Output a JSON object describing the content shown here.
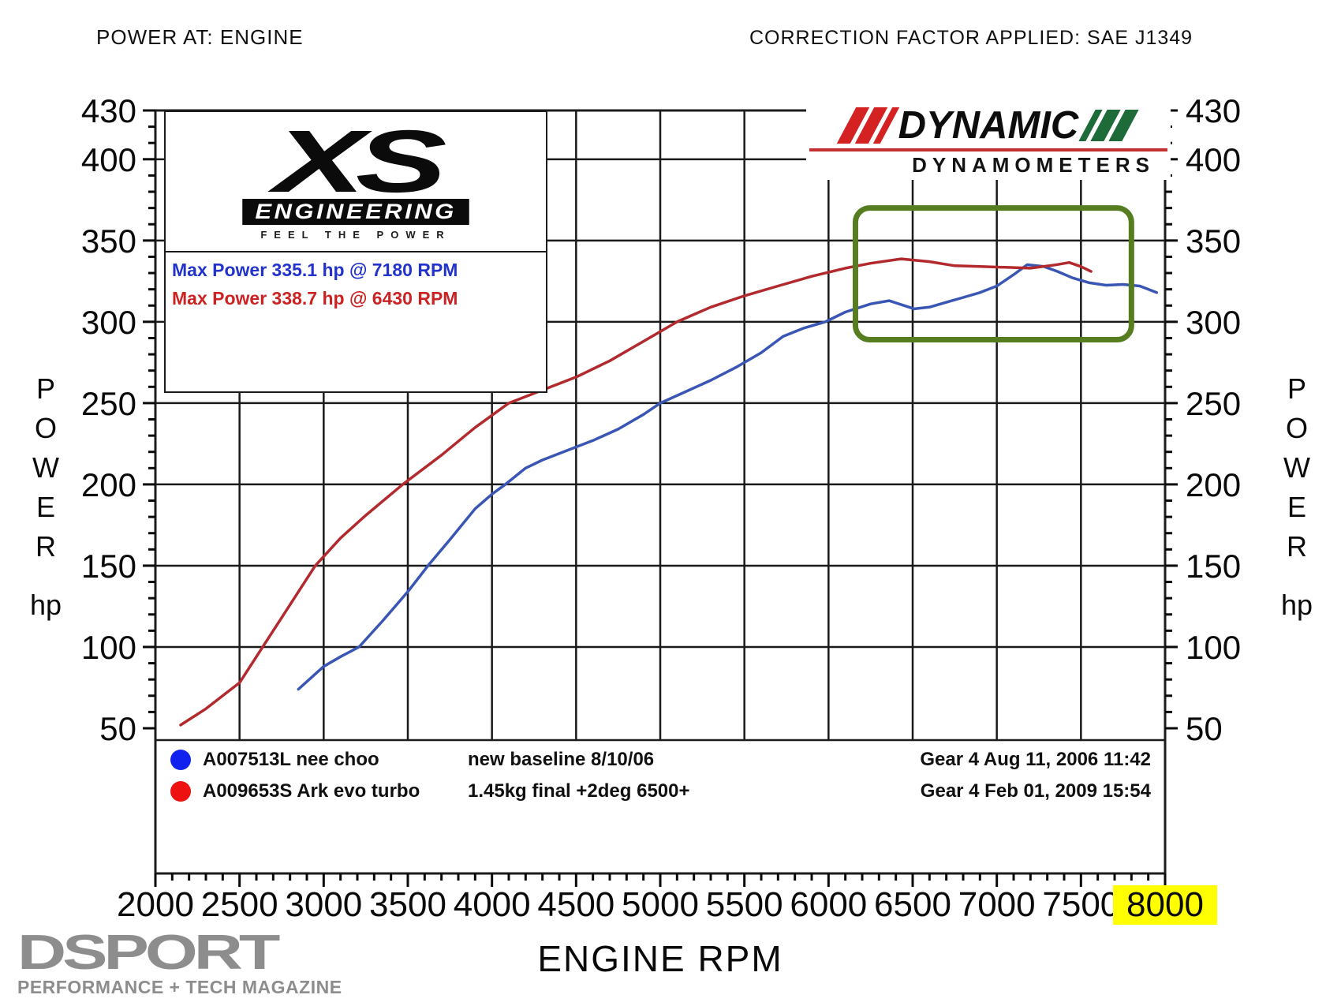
{
  "header": {
    "left": "POWER AT: ENGINE",
    "right": "CORRECTION FACTOR APPLIED: SAE J1349"
  },
  "info_box": {
    "max_power_blue": "Max Power 335.1 hp @ 7180 RPM",
    "max_power_red": "Max Power 338.7 hp @ 6430 RPM"
  },
  "logos": {
    "xs": {
      "title": "XS",
      "subtitle": "ENGINEERING",
      "tagline": "FEEL THE POWER"
    },
    "dynamic": {
      "title": "DYNAMIC",
      "subtitle": "DYNAMOMETERS"
    },
    "dsport": {
      "title": "DSPORT",
      "subtitle": "PERFORMANCE + TECH MAGAZINE"
    }
  },
  "legend": {
    "rows": [
      {
        "color": "#1122ee",
        "name": "A007513L nee choo",
        "description": "new baseline 8/10/06",
        "gear_info": "Gear 4 Aug 11, 2006 11:42"
      },
      {
        "color": "#ee1111",
        "name": "A009653S Ark evo turbo",
        "description": "1.45kg final +2deg 6500+",
        "gear_info": "Gear 4 Feb 01, 2009 15:54"
      }
    ]
  },
  "chart_data": {
    "type": "line",
    "title": "POWER AT: ENGINE",
    "correction_factor": "SAE J1349",
    "x_axis": {
      "title": "ENGINE RPM",
      "min": 2000,
      "max": 8000,
      "major_tick_step": 500,
      "minor_tick_step": 100,
      "tick_labels": [
        2000,
        2500,
        3000,
        3500,
        4000,
        4500,
        5000,
        5500,
        6000,
        6500,
        7000,
        7500,
        8000
      ],
      "highlighted_label": 8000,
      "highlight_color": "#ffff00"
    },
    "y_axis": {
      "title": "POWER",
      "unit": "hp",
      "top_label": 430,
      "bottom_label": 50,
      "tick_labels": [
        430,
        400,
        350,
        300,
        250,
        200,
        150,
        100,
        50
      ],
      "gridline_values": [
        400,
        350,
        300,
        250,
        200,
        150,
        100
      ],
      "minor_tick_step": 10
    },
    "series": [
      {
        "id": "blue",
        "name": "A007513L nee choo",
        "color": "#3a56b4",
        "max_power_hp": 335.1,
        "max_power_rpm": 7180,
        "points": [
          [
            2850,
            74
          ],
          [
            3000,
            88
          ],
          [
            3100,
            94
          ],
          [
            3210,
            100
          ],
          [
            3350,
            116
          ],
          [
            3500,
            134
          ],
          [
            3620,
            150
          ],
          [
            3750,
            166
          ],
          [
            3900,
            185
          ],
          [
            4000,
            194
          ],
          [
            4080,
            200
          ],
          [
            4200,
            210
          ],
          [
            4300,
            215
          ],
          [
            4450,
            221
          ],
          [
            4600,
            227
          ],
          [
            4750,
            234
          ],
          [
            4900,
            243
          ],
          [
            5000,
            250
          ],
          [
            5150,
            257
          ],
          [
            5300,
            264
          ],
          [
            5450,
            272
          ],
          [
            5600,
            281
          ],
          [
            5730,
            291
          ],
          [
            5850,
            296
          ],
          [
            5980,
            300
          ],
          [
            6100,
            306
          ],
          [
            6250,
            311
          ],
          [
            6360,
            313
          ],
          [
            6450,
            310
          ],
          [
            6510,
            308
          ],
          [
            6600,
            309
          ],
          [
            6700,
            312
          ],
          [
            6800,
            315
          ],
          [
            6900,
            318
          ],
          [
            7000,
            322
          ],
          [
            7100,
            329
          ],
          [
            7180,
            335.1
          ],
          [
            7280,
            334
          ],
          [
            7360,
            331
          ],
          [
            7450,
            327
          ],
          [
            7550,
            324
          ],
          [
            7650,
            322.5
          ],
          [
            7750,
            323
          ],
          [
            7850,
            322
          ],
          [
            7950,
            318
          ]
        ]
      },
      {
        "id": "red",
        "name": "A009653S Ark evo turbo",
        "color": "#b22a2e",
        "max_power_hp": 338.7,
        "max_power_rpm": 6430,
        "points": [
          [
            2150,
            52
          ],
          [
            2300,
            62
          ],
          [
            2400,
            70
          ],
          [
            2500,
            78
          ],
          [
            2650,
            102
          ],
          [
            2800,
            126
          ],
          [
            2950,
            150
          ],
          [
            3100,
            167
          ],
          [
            3250,
            181
          ],
          [
            3470,
            200
          ],
          [
            3700,
            218
          ],
          [
            3900,
            235
          ],
          [
            4100,
            250
          ],
          [
            4300,
            258
          ],
          [
            4500,
            266
          ],
          [
            4700,
            276
          ],
          [
            4900,
            288
          ],
          [
            5100,
            300
          ],
          [
            5300,
            309
          ],
          [
            5500,
            316
          ],
          [
            5700,
            322
          ],
          [
            5900,
            328
          ],
          [
            6100,
            333
          ],
          [
            6250,
            336
          ],
          [
            6430,
            338.7
          ],
          [
            6600,
            337
          ],
          [
            6750,
            334.5
          ],
          [
            6900,
            334
          ],
          [
            7050,
            333.5
          ],
          [
            7200,
            333
          ],
          [
            7350,
            335
          ],
          [
            7430,
            336.5
          ],
          [
            7500,
            334
          ],
          [
            7560,
            331
          ]
        ]
      }
    ],
    "highlight_box": {
      "color": "#567d20",
      "rpm_range": [
        6160,
        7800
      ],
      "hp_range": [
        289,
        370
      ]
    }
  }
}
